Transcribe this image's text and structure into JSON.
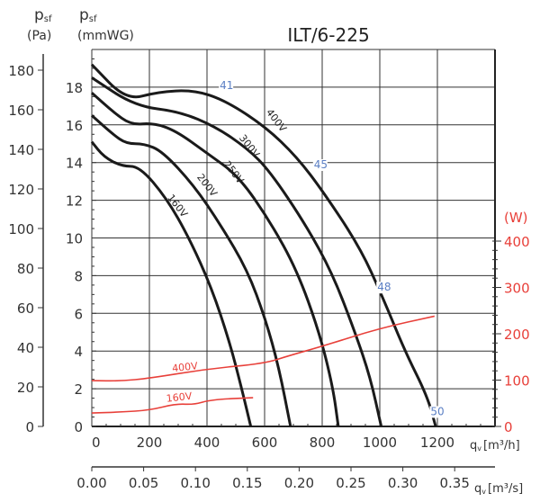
{
  "chart_data": {
    "type": "line",
    "title": "ILT/6-225",
    "y_left_outer_label": {
      "symbol": "p",
      "sub": "sf",
      "unit": "(Pa)"
    },
    "y_left_inner_label": {
      "symbol": "p",
      "sub": "sf",
      "unit": "(mmWG)"
    },
    "y_right_label": "(W)",
    "x_label": {
      "symbol": "q",
      "sub": "v",
      "unit": "[m³/h]"
    },
    "x2_label": {
      "symbol": "q",
      "sub": "v",
      "unit": "[m³/s]"
    },
    "xlim": [
      0,
      1400
    ],
    "ylim_mmwg": [
      0,
      20
    ],
    "ylim_pa_ticks": [
      0,
      20,
      40,
      60,
      80,
      100,
      120,
      140,
      160,
      180
    ],
    "ylim_w_ticks": [
      0,
      100,
      200,
      300,
      400
    ],
    "x_ticks": [
      0,
      200,
      400,
      600,
      800,
      1000,
      1200
    ],
    "y_ticks_mmwg": [
      0,
      2,
      4,
      6,
      8,
      10,
      12,
      14,
      16,
      18
    ],
    "x2_ticks": [
      "0.00",
      "0.05",
      "0.10",
      "0.15",
      "0.20",
      "0.25",
      "0.30",
      "0.35"
    ],
    "grid": true,
    "colors": {
      "pressure": "#1a1a1a",
      "power": "#e8403a",
      "efficiency": "#5b7fc4",
      "axis": "#333333"
    },
    "pressure_series": [
      {
        "name": "400V",
        "label_at": [
          495,
          16.0
        ],
        "points": [
          [
            0,
            19.2
          ],
          [
            120,
            17.3
          ],
          [
            229,
            17.75
          ],
          [
            354,
            17.85
          ],
          [
            463,
            17.3
          ],
          [
            603,
            15.9
          ],
          [
            712,
            14.3
          ],
          [
            806,
            12.4
          ],
          [
            931,
            9.5
          ],
          [
            1009,
            6.9
          ],
          [
            1087,
            4.0
          ],
          [
            1165,
            1.6
          ],
          [
            1194,
            0
          ]
        ]
      },
      {
        "name": "300V",
        "label_at": [
          520,
          14.3
        ],
        "points": [
          [
            0,
            18.5
          ],
          [
            150,
            17.0
          ],
          [
            306,
            16.7
          ],
          [
            430,
            15.9
          ],
          [
            540,
            14.75
          ],
          [
            618,
            13.55
          ],
          [
            743,
            10.7
          ],
          [
            836,
            8.1
          ],
          [
            914,
            5.0
          ],
          [
            967,
            2.6
          ],
          [
            1005,
            0
          ]
        ]
      },
      {
        "name": "250V",
        "label_at": [
          500,
          13.2
        ],
        "points": [
          [
            0,
            17.7
          ],
          [
            73,
            16.7
          ],
          [
            136,
            16.0
          ],
          [
            213,
            16.1
          ],
          [
            291,
            15.7
          ],
          [
            400,
            14.5
          ],
          [
            509,
            13.3
          ],
          [
            618,
            10.9
          ],
          [
            712,
            8.3
          ],
          [
            790,
            5.0
          ],
          [
            837,
            2.1
          ],
          [
            856,
            0
          ]
        ]
      },
      {
        "name": "200V",
        "label_at": [
          392,
          12.8
        ],
        "points": [
          [
            0,
            16.5
          ],
          [
            73,
            15.5
          ],
          [
            120,
            15.0
          ],
          [
            182,
            15.0
          ],
          [
            245,
            14.6
          ],
          [
            354,
            12.8
          ],
          [
            447,
            10.7
          ],
          [
            540,
            8.3
          ],
          [
            603,
            5.7
          ],
          [
            650,
            3.1
          ],
          [
            690,
            0
          ]
        ]
      },
      {
        "name": "160V",
        "label_at": [
          280,
          11.8
        ],
        "points": [
          [
            0,
            15.1
          ],
          [
            42,
            14.3
          ],
          [
            104,
            13.8
          ],
          [
            166,
            13.8
          ],
          [
            260,
            12.1
          ],
          [
            338,
            10.0
          ],
          [
            416,
            7.35
          ],
          [
            478,
            4.5
          ],
          [
            519,
            2.1
          ],
          [
            552,
            0
          ]
        ]
      }
    ],
    "power_series": [
      {
        "name": "400V",
        "label_at": [
          280,
          118
        ],
        "points": [
          [
            0,
            99
          ],
          [
            100,
            98
          ],
          [
            200,
            104
          ],
          [
            400,
            124
          ],
          [
            600,
            136
          ],
          [
            686,
            153
          ],
          [
            800,
            173
          ],
          [
            1000,
            212
          ],
          [
            1190,
            238
          ]
        ]
      },
      {
        "name": "160V",
        "label_at": [
          260,
          53
        ],
        "points": [
          [
            0,
            29
          ],
          [
            100,
            31
          ],
          [
            200,
            35
          ],
          [
            293,
            49
          ],
          [
            354,
            47
          ],
          [
            416,
            58
          ],
          [
            560,
            62
          ]
        ]
      }
    ],
    "efficiency_labels": [
      {
        "text": "41",
        "at": [
          463,
          17.9
        ]
      },
      {
        "text": "45",
        "at": [
          790,
          13.7
        ]
      },
      {
        "text": "48",
        "at": [
          1010,
          7.2
        ]
      },
      {
        "text": "50",
        "at": [
          1195,
          0.6
        ]
      }
    ]
  }
}
